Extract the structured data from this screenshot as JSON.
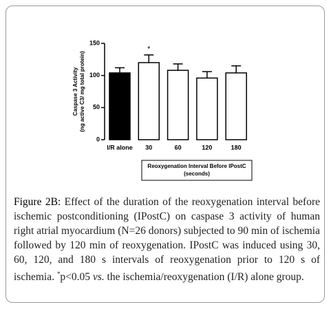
{
  "chart_data": {
    "type": "bar",
    "ylabel": [
      "Caspase 3 Activity",
      "(ng active C3/ mg total protein)"
    ],
    "xlabel": [
      "Reoxygenation Interval Before IPostC",
      "(seconds)"
    ],
    "categories": [
      "I/R alone",
      "30",
      "60",
      "120",
      "180"
    ],
    "values": [
      104,
      120,
      108,
      96,
      104
    ],
    "errors": [
      8,
      12,
      10,
      10,
      11
    ],
    "colors": [
      "#000000",
      "#ffffff",
      "#ffffff",
      "#ffffff",
      "#ffffff"
    ],
    "edgecolor": "#000000",
    "ylim": [
      0,
      150
    ],
    "yticks": [
      0,
      50,
      100,
      150
    ],
    "annotations": [
      {
        "text": "*",
        "x": "30"
      }
    ]
  },
  "caption": {
    "label": "Figure 2B:",
    "text": "Effect of the duration of the reoxygenation interval before ischemic postconditioning (IPostC) on caspase 3 activity of human right atrial myocardium (N=26 donors) subjected to 90 min of ischemia followed by 120 min of reoxygenation. IPostC was induced using 30, 60, 120, and 180 s intervals of reoxygenation prior to 120 s of ischemia.",
    "superscript": "*",
    "text_2": "p<0.05",
    "italic": "vs.",
    "text_3": "the ischemia/reoxygenation (I/R) alone group."
  }
}
